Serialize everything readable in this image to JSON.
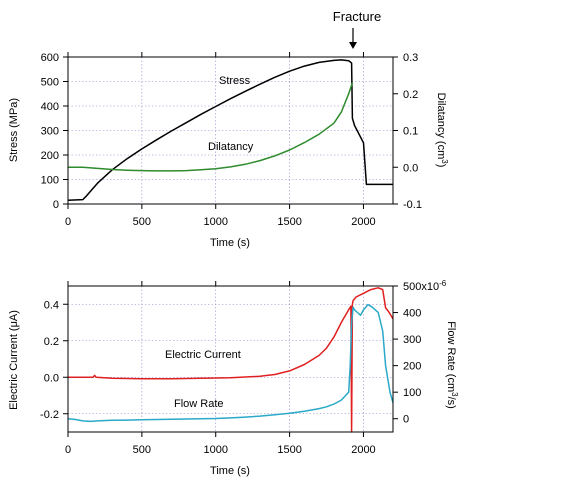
{
  "chart_data": [
    {
      "type": "line",
      "xlabel": "Time (s)",
      "ylabel": "Stress (MPa)",
      "y2label": "Dilatancy (cm",
      "y2label_sup": "3",
      "y2label_close": ")",
      "xlim": [
        0,
        2200
      ],
      "ylim": [
        0,
        600
      ],
      "y2lim": [
        -0.1,
        0.3
      ],
      "x_ticks": [
        0,
        500,
        1000,
        1500,
        2000
      ],
      "x_tick_labels": [
        "0",
        "500",
        "1000",
        "1500",
        "2000"
      ],
      "y_ticks": [
        0,
        100,
        200,
        300,
        400,
        500,
        600
      ],
      "y_tick_labels": [
        "0",
        "100",
        "200",
        "300",
        "400",
        "500",
        "600"
      ],
      "y2_ticks": [
        -0.1,
        0.0,
        0.1,
        0.2,
        0.3
      ],
      "y2_tick_labels": [
        "-0.1",
        "0.0",
        "0.1",
        "0.2",
        "0.3"
      ],
      "grid": true,
      "annotation": "Fracture",
      "annotation_x": 1900,
      "series": [
        {
          "name": "Stress",
          "axis": "left",
          "color": "#000000",
          "x": [
            0,
            100,
            120,
            200,
            300,
            400,
            500,
            600,
            700,
            800,
            900,
            1000,
            1100,
            1200,
            1300,
            1400,
            1500,
            1600,
            1700,
            1800,
            1850,
            1900,
            1920,
            1925,
            1940,
            2000,
            2020,
            2200
          ],
          "y": [
            15,
            18,
            30,
            85,
            140,
            185,
            225,
            262,
            298,
            332,
            366,
            398,
            430,
            460,
            489,
            517,
            542,
            563,
            578,
            586,
            588,
            585,
            575,
            350,
            320,
            250,
            80,
            80
          ]
        },
        {
          "name": "Dilatancy",
          "axis": "right",
          "color": "#2e8b2e",
          "x": [
            0,
            100,
            200,
            300,
            400,
            500,
            600,
            700,
            800,
            900,
            1000,
            1100,
            1200,
            1300,
            1400,
            1500,
            1600,
            1700,
            1800,
            1850,
            1900,
            1925
          ],
          "y": [
            0.0,
            0.0,
            -0.003,
            -0.006,
            -0.008,
            -0.009,
            -0.01,
            -0.01,
            -0.009,
            -0.007,
            -0.004,
            0.001,
            0.008,
            0.018,
            0.031,
            0.047,
            0.067,
            0.09,
            0.12,
            0.15,
            0.2,
            0.23
          ]
        }
      ]
    },
    {
      "type": "line",
      "xlabel": "Time (s)",
      "ylabel": "Electric Current (μA)",
      "y2label": "Flow Rate (cm",
      "y2label_sup": "3",
      "y2label_close": "/s)",
      "y2_exponent": "x10",
      "y2_exponent_sup": "-6",
      "xlim": [
        0,
        2200
      ],
      "ylim": [
        -0.3,
        0.5
      ],
      "y2lim": [
        -50,
        500
      ],
      "x_ticks": [
        0,
        500,
        1000,
        1500,
        2000
      ],
      "x_tick_labels": [
        "0",
        "500",
        "1000",
        "1500",
        "2000"
      ],
      "y_ticks": [
        -0.2,
        0.0,
        0.2,
        0.4
      ],
      "y_tick_labels": [
        "-0.2",
        "0.0",
        "0.2",
        "0.4"
      ],
      "y2_ticks": [
        0,
        100,
        200,
        300,
        400,
        500
      ],
      "y2_tick_labels": [
        "0",
        "100",
        "200",
        "300",
        "400",
        "500"
      ],
      "grid": true,
      "series": [
        {
          "name": "Electric Current",
          "axis": "left",
          "color": "#e02020",
          "x": [
            0,
            100,
            170,
            180,
            190,
            300,
            500,
            700,
            900,
            1100,
            1300,
            1400,
            1500,
            1600,
            1700,
            1750,
            1800,
            1850,
            1900,
            1915,
            1920,
            1925,
            1930,
            1950,
            2000,
            2050,
            2100,
            2130,
            2150,
            2170,
            2200
          ],
          "y": [
            0.0,
            0.0,
            0.0,
            0.01,
            0.0,
            -0.005,
            -0.008,
            -0.008,
            -0.006,
            -0.003,
            0.005,
            0.015,
            0.035,
            0.07,
            0.12,
            0.16,
            0.22,
            0.3,
            0.37,
            0.39,
            -0.3,
            0.4,
            0.42,
            0.44,
            0.46,
            0.48,
            0.49,
            0.48,
            0.38,
            0.36,
            0.32
          ]
        },
        {
          "name": "Flow Rate",
          "axis": "right",
          "color": "#2aa9c9",
          "x": [
            0,
            50,
            100,
            150,
            200,
            300,
            400,
            500,
            600,
            700,
            800,
            900,
            1000,
            1100,
            1200,
            1300,
            1400,
            1500,
            1600,
            1700,
            1750,
            1800,
            1850,
            1900,
            1910,
            1920,
            1930,
            1940,
            1960,
            1980,
            2000,
            2030,
            2060,
            2080,
            2100,
            2130,
            2150,
            2180,
            2200
          ],
          "y": [
            0,
            -3,
            -8,
            -10,
            -8,
            -6,
            -5,
            -4,
            -3,
            -2,
            -1,
            0,
            1,
            3,
            6,
            10,
            15,
            21,
            28,
            38,
            45,
            55,
            70,
            100,
            200,
            360,
            420,
            410,
            400,
            390,
            410,
            430,
            420,
            410,
            400,
            330,
            200,
            100,
            60
          ]
        }
      ]
    }
  ]
}
